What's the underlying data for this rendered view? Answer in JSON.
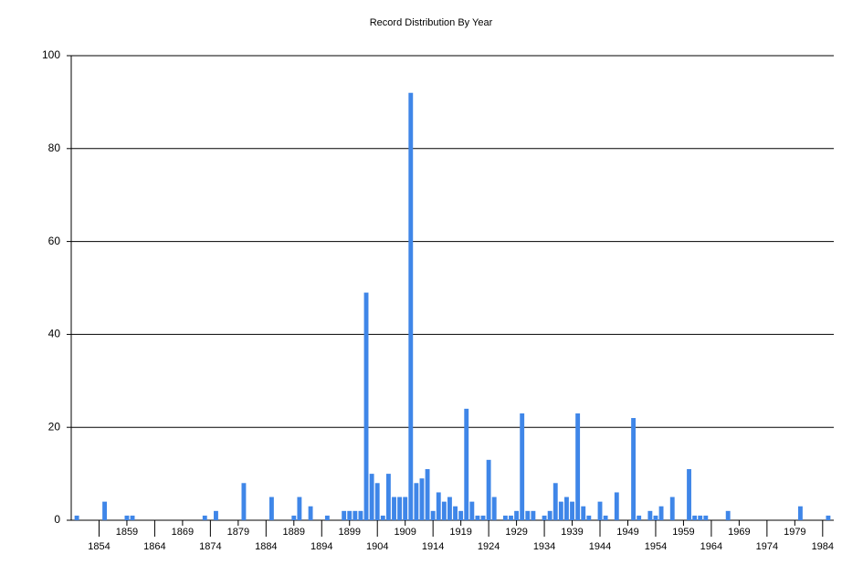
{
  "chart_data": {
    "type": "bar",
    "title": "Record Distribution By Year",
    "x": [
      1850,
      1855,
      1859,
      1860,
      1873,
      1875,
      1880,
      1885,
      1889,
      1890,
      1892,
      1895,
      1898,
      1899,
      1900,
      1901,
      1902,
      1903,
      1904,
      1905,
      1906,
      1907,
      1908,
      1909,
      1910,
      1911,
      1912,
      1913,
      1914,
      1915,
      1916,
      1917,
      1918,
      1919,
      1920,
      1921,
      1922,
      1923,
      1924,
      1925,
      1927,
      1928,
      1929,
      1930,
      1931,
      1932,
      1934,
      1935,
      1936,
      1937,
      1938,
      1939,
      1940,
      1941,
      1942,
      1944,
      1945,
      1947,
      1950,
      1951,
      1953,
      1954,
      1955,
      1957,
      1960,
      1961,
      1962,
      1963,
      1967,
      1980,
      1985
    ],
    "values": [
      1,
      4,
      1,
      1,
      1,
      2,
      8,
      5,
      1,
      5,
      3,
      1,
      2,
      2,
      2,
      2,
      49,
      10,
      8,
      1,
      10,
      5,
      5,
      5,
      92,
      8,
      9,
      11,
      2,
      6,
      4,
      5,
      3,
      2,
      24,
      4,
      1,
      1,
      13,
      5,
      1,
      1,
      2,
      23,
      2,
      2,
      1,
      2,
      8,
      4,
      5,
      4,
      23,
      3,
      1,
      4,
      1,
      6,
      22,
      1,
      2,
      1,
      3,
      5,
      11,
      1,
      1,
      1,
      2,
      3,
      1
    ],
    "color": "#3f86e8",
    "xlim": [
      1849,
      1986
    ],
    "xticks": [
      1854,
      1859,
      1864,
      1869,
      1874,
      1879,
      1884,
      1889,
      1894,
      1899,
      1904,
      1909,
      1914,
      1919,
      1924,
      1929,
      1934,
      1939,
      1944,
      1949,
      1954,
      1959,
      1964,
      1969,
      1974,
      1979,
      1984
    ],
    "ylim": [
      0,
      100
    ],
    "yticks": [
      0,
      20,
      40,
      60,
      80,
      100
    ],
    "grid": true
  }
}
